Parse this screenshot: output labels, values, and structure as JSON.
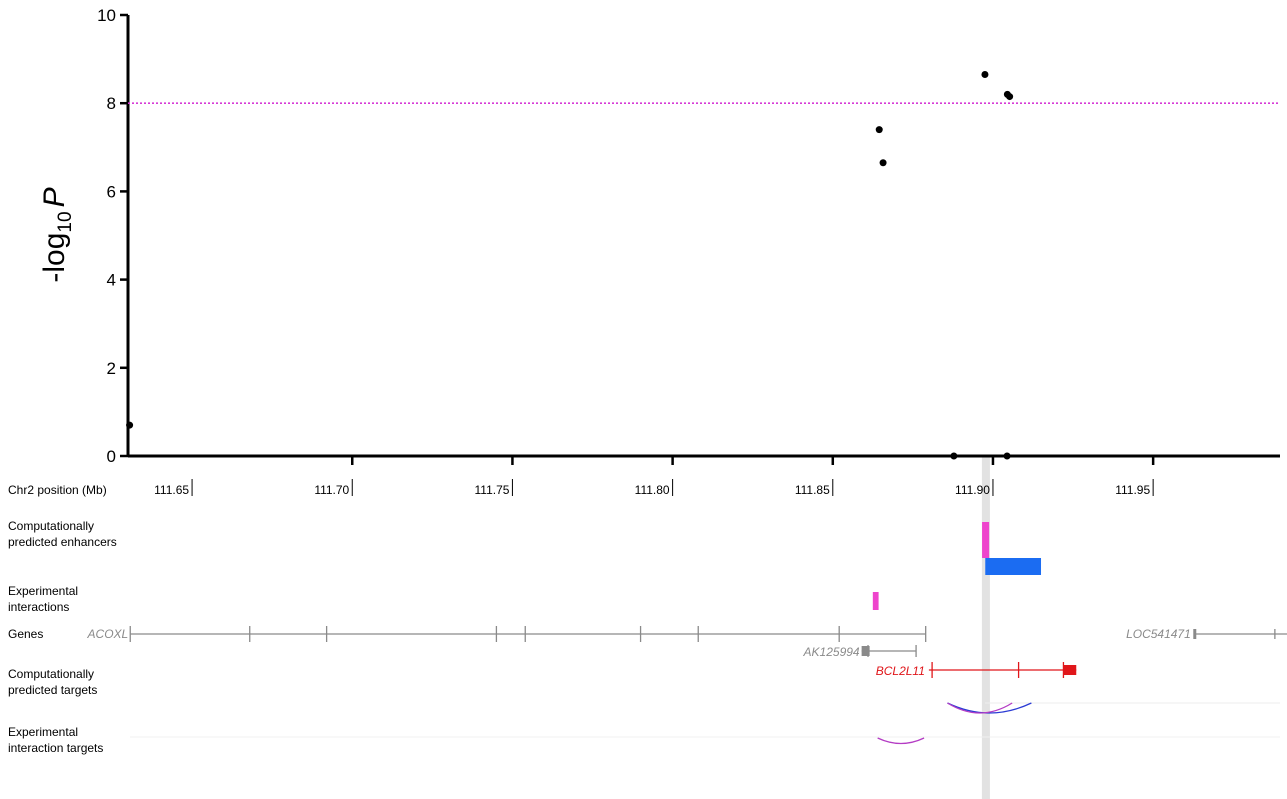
{
  "chart_data": {
    "type": "scatter",
    "ylabel": {
      "prefix": "-log",
      "sub": "10",
      "italic": "P"
    },
    "ylim": [
      0,
      10
    ],
    "yticks": [
      "0",
      "2",
      "4",
      "6",
      "8",
      "10"
    ],
    "xlim": [
      111.63,
      111.99
    ],
    "threshold": {
      "y": 8,
      "color": "#d63bd6"
    },
    "points_color": "#000000",
    "points": [
      {
        "x": 111.6305,
        "y": 0.7
      },
      {
        "x": 111.8645,
        "y": 7.4
      },
      {
        "x": 111.8657,
        "y": 6.65
      },
      {
        "x": 111.8878,
        "y": 0.0
      },
      {
        "x": 111.8975,
        "y": 8.65
      },
      {
        "x": 111.9045,
        "y": 8.2
      },
      {
        "x": 111.9052,
        "y": 8.15
      },
      {
        "x": 111.9044,
        "y": 0.0
      }
    ],
    "position_axis": {
      "label": "Chr2 position (Mb)",
      "ticks": [
        {
          "value": 111.65,
          "label": "111.65"
        },
        {
          "value": 111.7,
          "label": "111.70"
        },
        {
          "value": 111.75,
          "label": "111.75"
        },
        {
          "value": 111.8,
          "label": "111.80"
        },
        {
          "value": 111.85,
          "label": "111.85"
        },
        {
          "value": 111.9,
          "label": "111.90"
        },
        {
          "value": 111.95,
          "label": "111.95"
        }
      ]
    },
    "highlight_position": 111.8978,
    "tracks": {
      "enhancers": {
        "label_lines": [
          "Computationally",
          "predicted enhancers"
        ],
        "elements": [
          {
            "start": 111.8966,
            "end": 111.8988,
            "color": "#ee44cc"
          },
          {
            "start": 111.8976,
            "end": 111.915,
            "color": "#1b6cf2"
          }
        ]
      },
      "interactions": {
        "label_lines": [
          "Experimental",
          "interactions"
        ],
        "elements": [
          {
            "start": 111.8625,
            "end": 111.8643,
            "color": "#ee44cc"
          }
        ]
      },
      "genes": {
        "label": "Genes",
        "color": "#8a8a8a",
        "highlight_color": "#e0161a",
        "items": [
          {
            "name": "ACOXL",
            "start": 111.6307,
            "end": 111.879,
            "exons": [
              111.6307,
              111.668,
              111.692,
              111.745,
              111.754,
              111.79,
              111.808,
              111.852,
              111.879
            ],
            "highlight": false
          },
          {
            "name": "LOC541471",
            "start": 111.963,
            "end": 111.999,
            "exons": [
              111.963,
              111.988
            ],
            "highlight": false
          },
          {
            "name": "AK125994",
            "start": 111.859,
            "end": 111.876,
            "exons": [
              111.861,
              111.876
            ],
            "highlight": false
          },
          {
            "name": "BCL2L11",
            "start": 111.88,
            "end": 111.926,
            "exons": [
              111.881,
              111.908,
              111.922
            ],
            "highlight": true
          }
        ]
      },
      "predicted_targets": {
        "label_lines": [
          "Computationally",
          "predicted targets"
        ],
        "arcs": [
          {
            "from": 111.8858,
            "to": 111.912,
            "color": "#2b3bd4"
          },
          {
            "from": 111.8858,
            "to": 111.906,
            "color": "#b43cc4"
          }
        ]
      },
      "interaction_targets": {
        "label_lines": [
          "Experimental",
          "interaction targets"
        ],
        "arcs": [
          {
            "from": 111.864,
            "to": 111.8785,
            "color": "#b43cc4"
          }
        ]
      }
    }
  }
}
